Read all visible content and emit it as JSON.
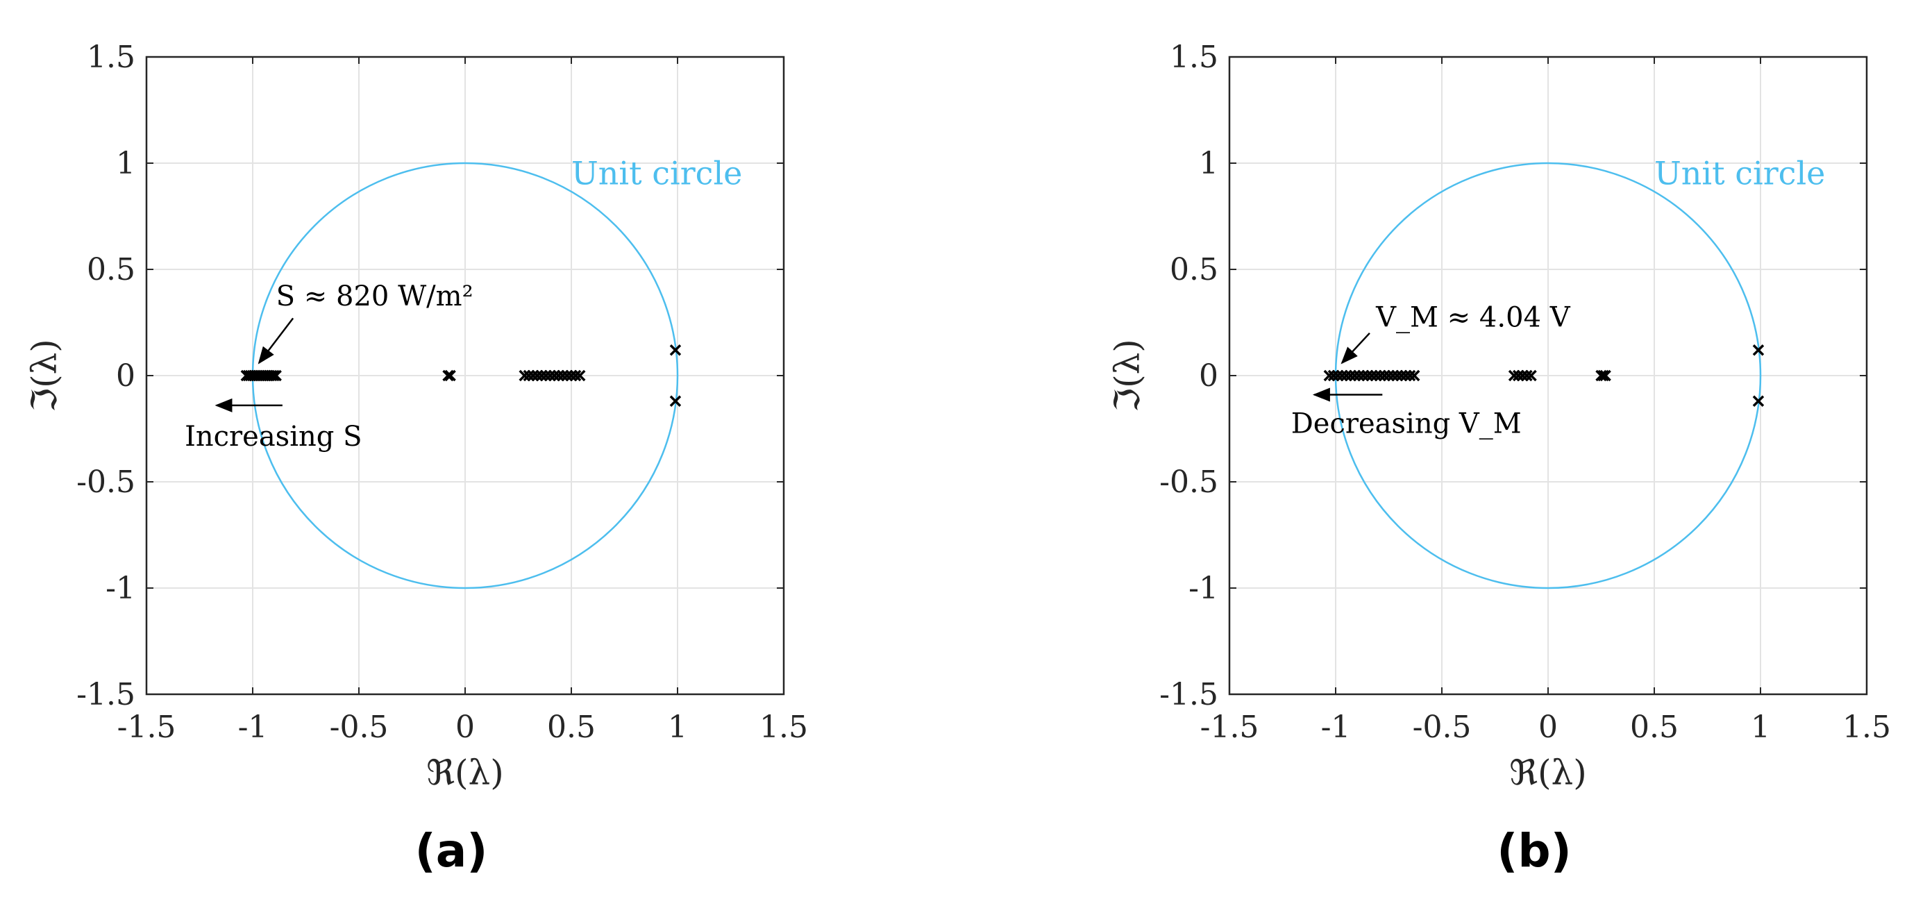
{
  "colors": {
    "circle": "#4DBEEE",
    "grid": "#e3e3e3",
    "axis": "#262626",
    "marker": "#000000"
  },
  "chart_data": [
    {
      "type": "scatter",
      "panel_label": "(a)",
      "xlabel": "ℜ(λ)",
      "ylabel": "ℑ(λ)",
      "xlim": [
        -1.5,
        1.5
      ],
      "ylim": [
        -1.5,
        1.5
      ],
      "xticks": [
        -1.5,
        -1,
        -0.5,
        0,
        0.5,
        1,
        1.5
      ],
      "yticks": [
        -1.5,
        -1,
        -0.5,
        0,
        0.5,
        1,
        1.5
      ],
      "xtick_labels": [
        "-1.5",
        "-1",
        "-0.5",
        "0",
        "0.5",
        "1",
        "1.5"
      ],
      "ytick_labels": [
        "-1.5",
        "-1",
        "-0.5",
        "0",
        "0.5",
        "1",
        "1.5"
      ],
      "grid": true,
      "marker": "x",
      "unit_circle_label": "Unit circle",
      "annotation_value": "S ≈ 820 W/m²",
      "annotation_direction": "Increasing S",
      "series": [
        {
          "x": [
            -1.03,
            -1.02,
            -1.01,
            -1.0,
            -0.99,
            -0.98,
            -0.97,
            -0.96,
            -0.95,
            -0.94,
            -0.93,
            -0.92,
            -0.91,
            -0.9,
            -0.89
          ],
          "y": [
            0,
            0,
            0,
            0,
            0,
            0,
            0,
            0,
            0,
            0,
            0,
            0,
            0,
            0,
            0
          ]
        },
        {
          "x": [
            -0.08,
            -0.07
          ],
          "y": [
            0,
            0
          ]
        },
        {
          "x": [
            0.28,
            0.3,
            0.32,
            0.34,
            0.36,
            0.38,
            0.4,
            0.42,
            0.44,
            0.46,
            0.48,
            0.5,
            0.52,
            0.54
          ],
          "y": [
            0,
            0,
            0,
            0,
            0,
            0,
            0,
            0,
            0,
            0,
            0,
            0,
            0,
            0
          ]
        },
        {
          "x": [
            0.99,
            0.99
          ],
          "y": [
            0.12,
            -0.12
          ]
        }
      ]
    },
    {
      "type": "scatter",
      "panel_label": "(b)",
      "xlabel": "ℜ(λ)",
      "ylabel": "ℑ(λ)",
      "xlim": [
        -1.5,
        1.5
      ],
      "ylim": [
        -1.5,
        1.5
      ],
      "xticks": [
        -1.5,
        -1,
        -0.5,
        0,
        0.5,
        1,
        1.5
      ],
      "yticks": [
        -1.5,
        -1,
        -0.5,
        0,
        0.5,
        1,
        1.5
      ],
      "xtick_labels": [
        "-1.5",
        "-1",
        "-0.5",
        "0",
        "0.5",
        "1",
        "1.5"
      ],
      "ytick_labels": [
        "-1.5",
        "-1",
        "-0.5",
        "0",
        "0.5",
        "1",
        "1.5"
      ],
      "grid": true,
      "marker": "x",
      "unit_circle_label": "Unit circle",
      "annotation_value": "V_M ≈ 4.04 V",
      "annotation_direction": "Decreasing V_M",
      "series": [
        {
          "x": [
            -1.03,
            -1.01,
            -0.99,
            -0.97,
            -0.95,
            -0.93,
            -0.91,
            -0.89,
            -0.87,
            -0.85,
            -0.83,
            -0.81,
            -0.79,
            -0.77,
            -0.75,
            -0.73,
            -0.71,
            -0.69,
            -0.67,
            -0.65,
            -0.63
          ],
          "y": [
            0,
            0,
            0,
            0,
            0,
            0,
            0,
            0,
            0,
            0,
            0,
            0,
            0,
            0,
            0,
            0,
            0,
            0,
            0,
            0,
            0
          ]
        },
        {
          "x": [
            -0.16,
            -0.14,
            -0.12,
            -0.1,
            -0.08
          ],
          "y": [
            0,
            0,
            0,
            0,
            0
          ]
        },
        {
          "x": [
            0.25,
            0.26,
            0.27
          ],
          "y": [
            0,
            0,
            0
          ]
        },
        {
          "x": [
            0.99,
            0.99
          ],
          "y": [
            0.12,
            -0.12
          ]
        }
      ]
    }
  ]
}
